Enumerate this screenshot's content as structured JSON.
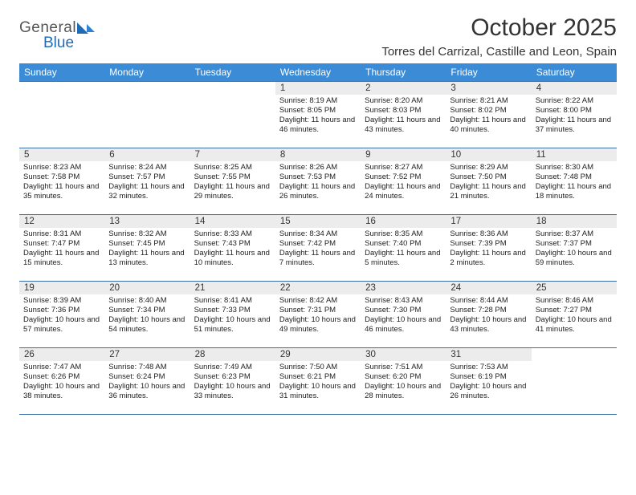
{
  "logo": {
    "line1": "General",
    "line2": "Blue"
  },
  "brand_colors": {
    "header_bg": "#3b8bd6",
    "rule": "#3b6fa6"
  },
  "title": "October 2025",
  "location": "Torres del Carrizal, Castille and Leon, Spain",
  "day_headers": [
    "Sunday",
    "Monday",
    "Tuesday",
    "Wednesday",
    "Thursday",
    "Friday",
    "Saturday"
  ],
  "weeks": [
    [
      null,
      null,
      null,
      {
        "n": "1",
        "sunrise": "8:19 AM",
        "sunset": "8:05 PM",
        "daylight": "11 hours and 46 minutes."
      },
      {
        "n": "2",
        "sunrise": "8:20 AM",
        "sunset": "8:03 PM",
        "daylight": "11 hours and 43 minutes."
      },
      {
        "n": "3",
        "sunrise": "8:21 AM",
        "sunset": "8:02 PM",
        "daylight": "11 hours and 40 minutes."
      },
      {
        "n": "4",
        "sunrise": "8:22 AM",
        "sunset": "8:00 PM",
        "daylight": "11 hours and 37 minutes."
      }
    ],
    [
      {
        "n": "5",
        "sunrise": "8:23 AM",
        "sunset": "7:58 PM",
        "daylight": "11 hours and 35 minutes."
      },
      {
        "n": "6",
        "sunrise": "8:24 AM",
        "sunset": "7:57 PM",
        "daylight": "11 hours and 32 minutes."
      },
      {
        "n": "7",
        "sunrise": "8:25 AM",
        "sunset": "7:55 PM",
        "daylight": "11 hours and 29 minutes."
      },
      {
        "n": "8",
        "sunrise": "8:26 AM",
        "sunset": "7:53 PM",
        "daylight": "11 hours and 26 minutes."
      },
      {
        "n": "9",
        "sunrise": "8:27 AM",
        "sunset": "7:52 PM",
        "daylight": "11 hours and 24 minutes."
      },
      {
        "n": "10",
        "sunrise": "8:29 AM",
        "sunset": "7:50 PM",
        "daylight": "11 hours and 21 minutes."
      },
      {
        "n": "11",
        "sunrise": "8:30 AM",
        "sunset": "7:48 PM",
        "daylight": "11 hours and 18 minutes."
      }
    ],
    [
      {
        "n": "12",
        "sunrise": "8:31 AM",
        "sunset": "7:47 PM",
        "daylight": "11 hours and 15 minutes."
      },
      {
        "n": "13",
        "sunrise": "8:32 AM",
        "sunset": "7:45 PM",
        "daylight": "11 hours and 13 minutes."
      },
      {
        "n": "14",
        "sunrise": "8:33 AM",
        "sunset": "7:43 PM",
        "daylight": "11 hours and 10 minutes."
      },
      {
        "n": "15",
        "sunrise": "8:34 AM",
        "sunset": "7:42 PM",
        "daylight": "11 hours and 7 minutes."
      },
      {
        "n": "16",
        "sunrise": "8:35 AM",
        "sunset": "7:40 PM",
        "daylight": "11 hours and 5 minutes."
      },
      {
        "n": "17",
        "sunrise": "8:36 AM",
        "sunset": "7:39 PM",
        "daylight": "11 hours and 2 minutes."
      },
      {
        "n": "18",
        "sunrise": "8:37 AM",
        "sunset": "7:37 PM",
        "daylight": "10 hours and 59 minutes."
      }
    ],
    [
      {
        "n": "19",
        "sunrise": "8:39 AM",
        "sunset": "7:36 PM",
        "daylight": "10 hours and 57 minutes."
      },
      {
        "n": "20",
        "sunrise": "8:40 AM",
        "sunset": "7:34 PM",
        "daylight": "10 hours and 54 minutes."
      },
      {
        "n": "21",
        "sunrise": "8:41 AM",
        "sunset": "7:33 PM",
        "daylight": "10 hours and 51 minutes."
      },
      {
        "n": "22",
        "sunrise": "8:42 AM",
        "sunset": "7:31 PM",
        "daylight": "10 hours and 49 minutes."
      },
      {
        "n": "23",
        "sunrise": "8:43 AM",
        "sunset": "7:30 PM",
        "daylight": "10 hours and 46 minutes."
      },
      {
        "n": "24",
        "sunrise": "8:44 AM",
        "sunset": "7:28 PM",
        "daylight": "10 hours and 43 minutes."
      },
      {
        "n": "25",
        "sunrise": "8:46 AM",
        "sunset": "7:27 PM",
        "daylight": "10 hours and 41 minutes."
      }
    ],
    [
      {
        "n": "26",
        "sunrise": "7:47 AM",
        "sunset": "6:26 PM",
        "daylight": "10 hours and 38 minutes."
      },
      {
        "n": "27",
        "sunrise": "7:48 AM",
        "sunset": "6:24 PM",
        "daylight": "10 hours and 36 minutes."
      },
      {
        "n": "28",
        "sunrise": "7:49 AM",
        "sunset": "6:23 PM",
        "daylight": "10 hours and 33 minutes."
      },
      {
        "n": "29",
        "sunrise": "7:50 AM",
        "sunset": "6:21 PM",
        "daylight": "10 hours and 31 minutes."
      },
      {
        "n": "30",
        "sunrise": "7:51 AM",
        "sunset": "6:20 PM",
        "daylight": "10 hours and 28 minutes."
      },
      {
        "n": "31",
        "sunrise": "7:53 AM",
        "sunset": "6:19 PM",
        "daylight": "10 hours and 26 minutes."
      },
      null
    ]
  ],
  "labels": {
    "sunrise": "Sunrise:",
    "sunset": "Sunset:",
    "daylight": "Daylight:"
  }
}
